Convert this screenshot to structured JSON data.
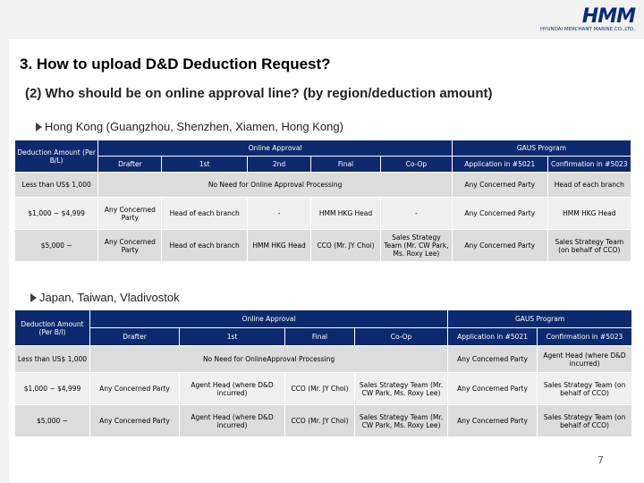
{
  "logo": {
    "text": "HMM",
    "subtitle": "HYUNDAI MERCHANT MARINE CO.,LTD."
  },
  "title": "3. How to upload D&D Deduction Request?",
  "subtitle": "(2) Who should be on online approval line? (by region/deduction amount)",
  "table1": {
    "region": "Hong Kong (Guangzhou, Shenzhen, Xiamen, Hong Kong)",
    "header": {
      "deduction": "Deduction Amount (Per B/L)",
      "online_approval": "Online Approval",
      "gaus": "GAUS Program",
      "drafter": "Drafter",
      "first": "1st",
      "second": "2nd",
      "final": "Final",
      "coop": "Co-Op",
      "app": "Application in #5021",
      "conf": "Confirmation in #5023"
    },
    "rows": [
      {
        "amount": "Less than US$ 1,000",
        "no_need": "No Need for Online Approval Processing",
        "app": "Any Concerned Party",
        "conf": "Head of each branch"
      },
      {
        "amount": "$1,000 ~ $4,999",
        "drafter": "Any Concerned Party",
        "first": "Head of each branch",
        "second": "-",
        "final": "HMM HKG Head",
        "coop": "-",
        "app": "Any Concerned Party",
        "conf": "HMM HKG Head"
      },
      {
        "amount": "$5,000 ~",
        "drafter": "Any Concerned Party",
        "first": "Head of each branch",
        "second": "HMM HKG Head",
        "final": "CCO (Mr. JY Choi)",
        "coop": "Sales Strategy Team (Mr. CW Park, Ms. Roxy Lee)",
        "app": "Any Concerned Party",
        "conf": "Sales Strategy Team (on behalf of CCO)"
      }
    ]
  },
  "table2": {
    "region": "Japan, Taiwan, Vladivostok",
    "header": {
      "deduction": "Deduction Amount (Per B/l)",
      "online_approval": "Online Approval",
      "gaus": "GAUS Program",
      "drafter": "Drafter",
      "first": "1st",
      "final": "Final",
      "coop": "Co-Op",
      "app": "Application in #5021",
      "conf": "Confirmation in #5023"
    },
    "rows": [
      {
        "amount": "Less than US$ 1,000",
        "no_need": "No Need for OnlineApproval Processing",
        "app": "Any Concerned Party",
        "conf": "Agent Head (where D&D incurred)"
      },
      {
        "amount": "$1,000 ~ $4,999",
        "drafter": "Any Concerned Party",
        "first": "Agent Head (where D&D incurred)",
        "final": "CCO (Mr. JY Choi)",
        "coop": "Sales Strategy Team (Mr. CW Park, Ms. Roxy Lee)",
        "app": "Any Concerned Party",
        "conf": "Sales Strategy Team (on behalf of CCO)"
      },
      {
        "amount": "$5,000 ~",
        "drafter": "Any Concerned Party",
        "first": "Agent Head (where D&D incurred)",
        "final": "CCO (Mr. JY Choi)",
        "coop": "Sales Strategy Team (Mr. CW Park, Ms. Roxy Lee)",
        "app": "Any Concerned Party",
        "conf": "Sales Strategy Team (on behalf of CCO)"
      }
    ]
  },
  "page_number": "7",
  "colors": {
    "header": "#0d2a6e",
    "grey": "#dcdcdc",
    "light": "#efefef",
    "brand": "#0a2a7a"
  }
}
